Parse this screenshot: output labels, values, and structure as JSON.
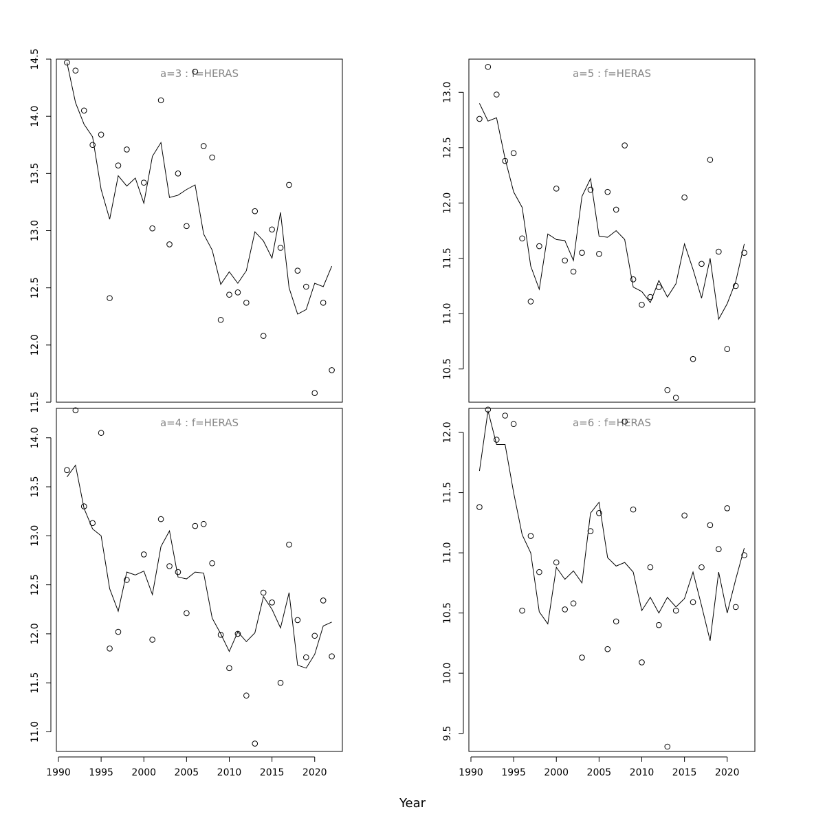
{
  "xlabel": "Year",
  "colors": {
    "line": "#000000",
    "points": "#000000",
    "title": "#888888",
    "frame": "#000000"
  },
  "chart_data": [
    {
      "type": "line",
      "title": "a=3  :  f=HERAS",
      "position": "top-left",
      "xlim": [
        1991,
        2022
      ],
      "ylim": [
        11.5,
        14.5
      ],
      "yticks": [
        11.5,
        12.0,
        12.5,
        13.0,
        13.5,
        14.0,
        14.5
      ],
      "years": [
        1991,
        1992,
        1993,
        1994,
        1995,
        1996,
        1997,
        1998,
        1999,
        2000,
        2001,
        2002,
        2003,
        2004,
        2005,
        2006,
        2007,
        2008,
        2009,
        2010,
        2011,
        2012,
        2013,
        2014,
        2015,
        2016,
        2017,
        2018,
        2019,
        2020,
        2021,
        2022
      ],
      "series": [
        {
          "values": [
            14.47,
            14.12,
            13.93,
            13.82,
            13.36,
            13.1,
            13.48,
            13.39,
            13.46,
            13.24,
            13.65,
            13.77,
            13.29,
            13.31,
            13.36,
            13.4,
            12.97,
            12.83,
            12.53,
            12.64,
            12.54,
            12.65,
            12.99,
            12.91,
            12.76,
            13.16,
            12.5,
            12.27,
            12.31,
            12.54,
            12.51,
            12.69
          ]
        },
        {
          "values": [
            14.47,
            14.4,
            14.05,
            13.75,
            13.84,
            12.41,
            13.57,
            13.71,
            null,
            13.42,
            13.02,
            14.14,
            12.88,
            13.5,
            13.04,
            14.39,
            13.74,
            13.64,
            12.22,
            12.44,
            12.46,
            12.37,
            13.17,
            12.08,
            13.01,
            12.85,
            13.4,
            12.65,
            12.51,
            11.58,
            12.37,
            11.78
          ]
        }
      ]
    },
    {
      "type": "line",
      "title": "a=5  :  f=HERAS",
      "position": "top-right",
      "xlim": [
        1991,
        2022
      ],
      "ylim": [
        10.2,
        13.3
      ],
      "yticks": [
        10.5,
        11.0,
        11.5,
        12.0,
        12.5,
        13.0
      ],
      "years": [
        1991,
        1992,
        1993,
        1994,
        1995,
        1996,
        1997,
        1998,
        1999,
        2000,
        2001,
        2002,
        2003,
        2004,
        2005,
        2006,
        2007,
        2008,
        2009,
        2010,
        2011,
        2012,
        2013,
        2014,
        2015,
        2016,
        2017,
        2018,
        2019,
        2020,
        2021,
        2022
      ],
      "series": [
        {
          "values": [
            12.9,
            12.74,
            12.77,
            12.4,
            12.1,
            11.96,
            11.43,
            11.22,
            11.72,
            11.67,
            11.66,
            11.48,
            12.06,
            12.22,
            11.7,
            11.69,
            11.75,
            11.67,
            11.24,
            11.2,
            11.1,
            11.3,
            11.15,
            11.27,
            11.63,
            11.4,
            11.14,
            11.5,
            10.95,
            11.09,
            11.29,
            11.63
          ]
        },
        {
          "values": [
            12.76,
            13.23,
            12.98,
            12.38,
            12.45,
            11.68,
            11.11,
            11.61,
            null,
            12.13,
            11.48,
            11.38,
            11.55,
            12.12,
            11.54,
            12.1,
            11.94,
            12.52,
            11.31,
            11.08,
            11.15,
            11.24,
            10.31,
            10.24,
            12.05,
            10.59,
            11.45,
            12.39,
            11.56,
            10.68,
            11.25,
            11.55
          ]
        }
      ]
    },
    {
      "type": "line",
      "title": "a=4  :  f=HERAS",
      "position": "bottom-left",
      "xlim": [
        1991,
        2022
      ],
      "ylim": [
        10.8,
        14.3
      ],
      "yticks": [
        11.0,
        11.5,
        12.0,
        12.5,
        13.0,
        13.5,
        14.0
      ],
      "years": [
        1991,
        1992,
        1993,
        1994,
        1995,
        1996,
        1997,
        1998,
        1999,
        2000,
        2001,
        2002,
        2003,
        2004,
        2005,
        2006,
        2007,
        2008,
        2009,
        2010,
        2011,
        2012,
        2013,
        2014,
        2015,
        2016,
        2017,
        2018,
        2019,
        2020,
        2021,
        2022
      ],
      "series": [
        {
          "values": [
            13.6,
            13.72,
            13.28,
            13.07,
            13.0,
            12.46,
            12.23,
            12.63,
            12.6,
            12.64,
            12.4,
            12.89,
            13.05,
            12.58,
            12.56,
            12.63,
            12.62,
            12.16,
            12.0,
            11.82,
            12.02,
            11.92,
            12.01,
            12.38,
            12.25,
            12.06,
            12.42,
            11.68,
            11.65,
            11.79,
            12.08,
            12.12
          ]
        },
        {
          "values": [
            13.67,
            14.28,
            13.3,
            13.13,
            14.05,
            11.85,
            12.02,
            12.55,
            null,
            12.81,
            11.94,
            13.17,
            12.69,
            12.63,
            12.21,
            13.1,
            13.12,
            12.72,
            11.99,
            11.65,
            12.0,
            11.37,
            10.88,
            12.42,
            12.32,
            11.5,
            12.91,
            12.14,
            11.76,
            11.98,
            12.34,
            11.77
          ]
        }
      ]
    },
    {
      "type": "line",
      "title": "a=6  :  f=HERAS",
      "position": "bottom-right",
      "xlim": [
        1991,
        2022
      ],
      "ylim": [
        9.35,
        12.2
      ],
      "yticks": [
        9.5,
        10.0,
        10.5,
        11.0,
        11.5,
        12.0
      ],
      "years": [
        1991,
        1992,
        1993,
        1994,
        1995,
        1996,
        1997,
        1998,
        1999,
        2000,
        2001,
        2002,
        2003,
        2004,
        2005,
        2006,
        2007,
        2008,
        2009,
        2010,
        2011,
        2012,
        2013,
        2014,
        2015,
        2016,
        2017,
        2018,
        2019,
        2020,
        2021,
        2022
      ],
      "series": [
        {
          "values": [
            11.68,
            12.18,
            11.9,
            11.9,
            11.5,
            11.15,
            11.0,
            10.51,
            10.41,
            10.88,
            10.78,
            10.85,
            10.75,
            11.33,
            11.42,
            10.96,
            10.89,
            10.92,
            10.84,
            10.52,
            10.63,
            10.5,
            10.63,
            10.55,
            10.62,
            10.84,
            10.56,
            10.27,
            10.84,
            10.5,
            10.78,
            11.04
          ]
        },
        {
          "values": [
            11.38,
            12.19,
            11.94,
            12.14,
            12.07,
            10.52,
            11.14,
            10.84,
            null,
            10.92,
            10.53,
            10.58,
            10.13,
            11.18,
            11.33,
            10.2,
            10.43,
            12.09,
            11.36,
            10.09,
            10.88,
            10.4,
            9.39,
            10.52,
            11.31,
            10.59,
            10.88,
            11.23,
            11.03,
            11.37,
            10.55,
            10.98
          ]
        }
      ]
    }
  ]
}
